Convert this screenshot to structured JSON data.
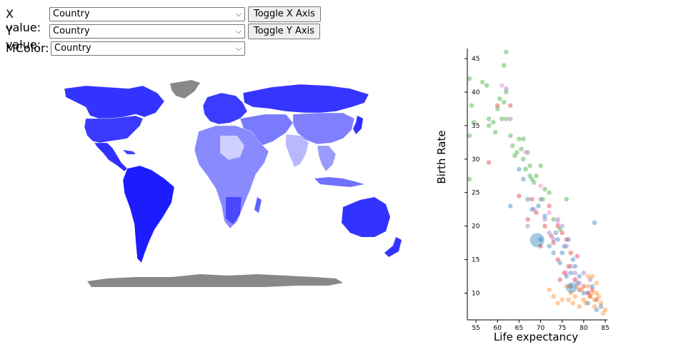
{
  "controls": {
    "x_label": "X value:",
    "x_selected": "Country",
    "toggle_x": "Toggle X Axis",
    "y_label": "Y value:",
    "y_selected": "Country",
    "toggle_y": "Toggle Y Axis",
    "color_label": "MColor:",
    "color_selected": "Country"
  },
  "map": {
    "colors": {
      "strong": "#1a1aff",
      "mid": "#4d4dff",
      "light": "#9999ff",
      "pale": "#d6d6ff",
      "nodata": "#888888"
    }
  },
  "chart_data": {
    "type": "scatter",
    "xlabel": "Life expectancy",
    "ylabel": "Birth Rate",
    "xlim": [
      53,
      85.5
    ],
    "ylim": [
      6,
      46.5
    ],
    "xticks": [
      55,
      60,
      65,
      70,
      75,
      80,
      85
    ],
    "yticks": [
      10,
      15,
      20,
      25,
      30,
      35,
      40,
      45
    ],
    "grid": false,
    "series": [
      {
        "color": "#2ca02c",
        "points": [
          [
            53.5,
            42
          ],
          [
            53.5,
            33.5
          ],
          [
            54,
            38
          ],
          [
            54.5,
            35.5
          ],
          [
            53.5,
            27
          ],
          [
            56.5,
            41.5
          ],
          [
            57.5,
            41
          ],
          [
            58,
            36
          ],
          [
            58,
            35
          ],
          [
            59,
            35.5
          ],
          [
            59.5,
            34
          ],
          [
            60,
            37.5
          ],
          [
            60.5,
            39
          ],
          [
            61,
            36
          ],
          [
            61.5,
            44
          ],
          [
            62,
            46
          ],
          [
            61.5,
            38.5
          ],
          [
            62,
            40
          ],
          [
            62,
            36
          ],
          [
            63,
            33.5
          ],
          [
            63.5,
            32
          ],
          [
            64,
            30.5
          ],
          [
            64.5,
            31
          ],
          [
            65,
            33
          ],
          [
            65.5,
            31.5
          ],
          [
            66,
            33
          ],
          [
            66,
            30
          ],
          [
            66.5,
            28.5
          ],
          [
            67,
            31
          ],
          [
            67.5,
            29
          ],
          [
            67.5,
            27.5
          ],
          [
            68,
            27
          ],
          [
            68.5,
            26.5
          ],
          [
            69,
            27.5
          ],
          [
            70,
            29
          ],
          [
            70.5,
            24
          ],
          [
            71,
            25.5
          ],
          [
            72,
            25
          ],
          [
            73,
            21
          ],
          [
            74.5,
            19.5
          ],
          [
            76,
            24
          ]
        ]
      },
      {
        "color": "#d62728",
        "points": [
          [
            58,
            29.5
          ],
          [
            60,
            38
          ],
          [
            63,
            38
          ],
          [
            65,
            24.5
          ],
          [
            67,
            21
          ],
          [
            68,
            24
          ],
          [
            69,
            22
          ],
          [
            70,
            17
          ],
          [
            71,
            20
          ],
          [
            72,
            23
          ],
          [
            72.5,
            18.5
          ],
          [
            73,
            17.5
          ],
          [
            74,
            20
          ],
          [
            74,
            15
          ],
          [
            74.5,
            12
          ],
          [
            75,
            19
          ],
          [
            75.5,
            13
          ],
          [
            76,
            18
          ],
          [
            76.5,
            14
          ],
          [
            77,
            16
          ],
          [
            77,
            11
          ],
          [
            78,
            12
          ],
          [
            78.5,
            15.5
          ],
          [
            79,
            10.5
          ],
          [
            80,
            11
          ],
          [
            81,
            10
          ],
          [
            81.5,
            9.5
          ],
          [
            82,
            10.5
          ],
          [
            83,
            9
          ]
        ]
      },
      {
        "color": "#1f77b4",
        "points": [
          [
            63,
            23
          ],
          [
            65,
            28.5
          ],
          [
            66,
            27
          ],
          [
            67,
            24
          ],
          [
            68,
            22.5
          ],
          [
            69.5,
            23
          ],
          [
            70,
            18
          ],
          [
            71,
            21.5
          ],
          [
            72,
            17
          ],
          [
            73,
            16
          ],
          [
            73.5,
            19
          ],
          [
            74,
            18
          ],
          [
            74.5,
            14.5
          ],
          [
            75,
            16
          ],
          [
            75.5,
            17
          ],
          [
            76,
            12.5
          ],
          [
            76.5,
            18
          ],
          [
            77,
            13
          ],
          [
            77.5,
            15
          ],
          [
            78,
            14
          ],
          [
            78.5,
            11.5
          ],
          [
            79,
            12.5
          ],
          [
            80,
            10
          ],
          [
            81,
            8.5
          ],
          [
            82,
            11
          ],
          [
            82.5,
            20.5
          ],
          [
            83,
            7.5
          ],
          [
            84,
            8
          ]
        ]
      },
      {
        "color": "#9467bd",
        "points": [
          [
            62,
            40.5
          ],
          [
            63,
            36
          ],
          [
            67,
            20
          ],
          [
            68.5,
            22.5
          ],
          [
            70,
            24
          ],
          [
            71,
            21
          ],
          [
            72,
            19
          ],
          [
            73,
            18
          ],
          [
            74,
            21
          ],
          [
            75,
            20
          ],
          [
            76,
            17
          ],
          [
            77,
            14
          ],
          [
            78,
            13
          ],
          [
            79,
            11.5
          ],
          [
            80,
            13
          ],
          [
            81,
            10
          ],
          [
            81.5,
            12
          ]
        ]
      },
      {
        "color": "#e377c2",
        "points": [
          [
            61,
            41
          ],
          [
            66.5,
            31
          ],
          [
            70,
            26
          ],
          [
            72,
            22
          ],
          [
            74,
            20.5
          ],
          [
            76,
            13
          ],
          [
            78,
            12
          ]
        ]
      },
      {
        "color": "#ff7f0e",
        "points": [
          [
            72,
            10.5
          ],
          [
            73,
            9.5
          ],
          [
            74,
            8.5
          ],
          [
            75,
            9
          ],
          [
            76,
            11
          ],
          [
            76.5,
            9
          ],
          [
            77,
            10
          ],
          [
            77.5,
            8.5
          ],
          [
            78,
            9.5
          ],
          [
            78.5,
            11
          ],
          [
            79,
            8
          ],
          [
            79.5,
            10.5
          ],
          [
            80,
            9
          ],
          [
            80.5,
            8.5
          ],
          [
            81,
            11
          ],
          [
            81.5,
            9.5
          ],
          [
            82,
            12.5
          ],
          [
            82,
            10
          ],
          [
            82.5,
            9
          ],
          [
            82.5,
            8
          ],
          [
            83,
            11.5
          ],
          [
            83,
            10
          ],
          [
            83.5,
            9.5
          ],
          [
            84,
            8.5
          ],
          [
            84.5,
            7
          ],
          [
            85,
            7.5
          ],
          [
            81,
            12.5
          ]
        ]
      }
    ],
    "large_points": [
      {
        "color": "#1f77b4",
        "x": 69.2,
        "y": 17.9,
        "size": 2
      },
      {
        "color": "#1f77b4",
        "x": 77.2,
        "y": 10.8,
        "size": 1.5
      }
    ]
  }
}
